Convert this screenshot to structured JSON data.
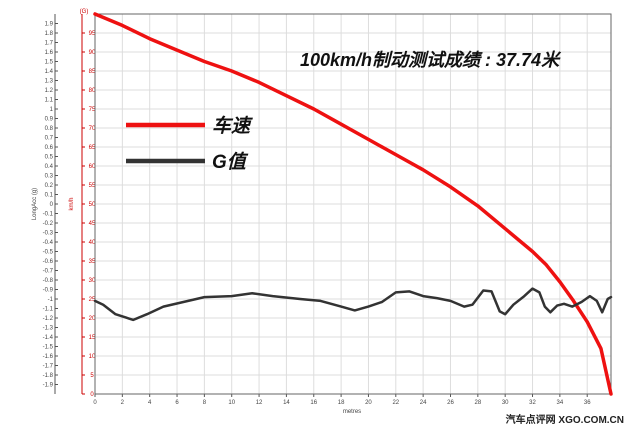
{
  "chart_data": {
    "type": "line",
    "title": "",
    "xlabel": "metres",
    "xlim": [
      0,
      37.74
    ],
    "x_ticks": [
      0,
      2,
      4,
      6,
      8,
      10,
      12,
      14,
      16,
      18,
      20,
      22,
      24,
      26,
      28,
      30,
      32,
      34,
      36
    ],
    "y_left": {
      "label": "LongAcc (g)",
      "range": [
        -2,
        2
      ],
      "ticks": [
        "-1.9",
        "-1.8",
        "-1.7",
        "-1.6",
        "-1.5",
        "-1.4",
        "-1.3",
        "-1.2",
        "-1.1",
        "-1",
        "-0.9",
        "-0.8",
        "-0.7",
        "-0.6",
        "-0.5",
        "-0.4",
        "-0.3",
        "-0.2",
        "-0.1",
        "0",
        "0.1",
        "0.2",
        "0.3",
        "0.4",
        "0.5",
        "0.6",
        "0.7",
        "0.8",
        "0.9",
        "1",
        "1.1",
        "1.2",
        "1.3",
        "1.4",
        "1.5",
        "1.6",
        "1.7",
        "1.8",
        "1.9"
      ],
      "color": "#444444"
    },
    "y_right": {
      "label": "km/h",
      "range": [
        0,
        100
      ],
      "ticks": [
        "0",
        "5",
        "10",
        "15",
        "20",
        "25",
        "30",
        "35",
        "40",
        "45",
        "50",
        "55",
        "60",
        "65",
        "70",
        "75",
        "80",
        "85",
        "90",
        "95"
      ],
      "top_label": "(G)",
      "color": "#cc0000"
    },
    "grid": true,
    "series": [
      {
        "name": "车速",
        "color": "#ee1111",
        "axis": "speed",
        "x": [
          0,
          2,
          4,
          6,
          8,
          10,
          12,
          14,
          16,
          18,
          20,
          22,
          24,
          26,
          28,
          30,
          32,
          33,
          34,
          35,
          36,
          37,
          37.74
        ],
        "y": [
          100,
          97,
          93.5,
          90.5,
          87.5,
          85,
          82,
          78.5,
          75,
          71,
          67,
          63,
          59,
          54.5,
          49.5,
          43.5,
          37.5,
          34,
          29.5,
          24.5,
          19,
          12,
          0
        ]
      },
      {
        "name": "G值",
        "color": "#333333",
        "axis": "g",
        "x": [
          0,
          0.6,
          1.5,
          2.8,
          3.8,
          5,
          6.5,
          8,
          10,
          11.5,
          13,
          15,
          16.5,
          18,
          19,
          20,
          21,
          22,
          23,
          24,
          25,
          26,
          27,
          27.6,
          28.4,
          29,
          29.6,
          30,
          30.6,
          31.4,
          32,
          32.5,
          32.9,
          33.3,
          33.8,
          34.3,
          34.9,
          35.6,
          36.2,
          36.7,
          37.1,
          37.5,
          37.74
        ],
        "y": [
          -1.02,
          -1.06,
          -1.16,
          -1.22,
          -1.16,
          -1.08,
          -1.03,
          -0.98,
          -0.97,
          -0.94,
          -0.97,
          -1.0,
          -1.02,
          -1.08,
          -1.12,
          -1.08,
          -1.03,
          -0.93,
          -0.92,
          -0.97,
          -0.99,
          -1.02,
          -1.08,
          -1.06,
          -0.91,
          -0.92,
          -1.13,
          -1.16,
          -1.06,
          -0.97,
          -0.89,
          -0.93,
          -1.08,
          -1.14,
          -1.07,
          -1.05,
          -1.08,
          -1.03,
          -0.97,
          -1.02,
          -1.14,
          -1.0,
          -0.98
        ]
      }
    ],
    "legend": {
      "placement": "upper-left"
    },
    "annotation": "100km/h制动测试成绩 : 37.74米"
  },
  "watermark": "汽车点评网  XGO.COM.CN"
}
